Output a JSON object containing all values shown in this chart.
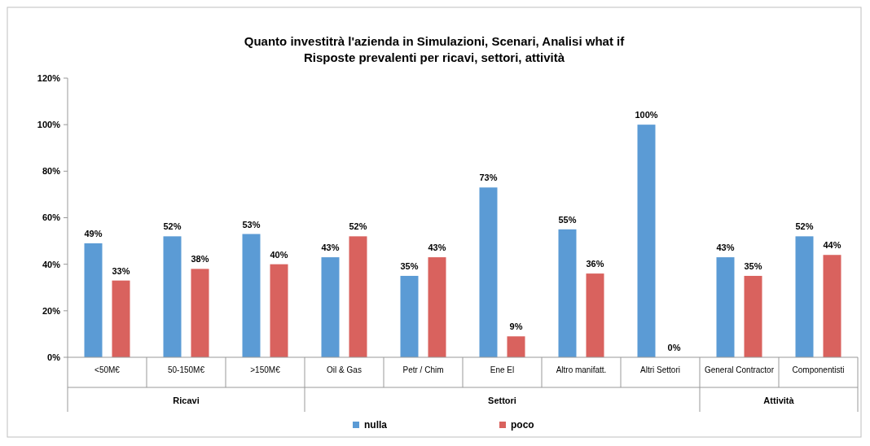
{
  "chart_data": {
    "type": "bar",
    "title": "Quanto investitrà l'azienda in  Simulazioni, Scenari, Analisi what if",
    "subtitle": "Risposte prevalenti per ricavi, settori, attività",
    "categories": [
      "<50M€",
      "50-150M€",
      ">150M€",
      "Oil & Gas",
      "Petr / Chim",
      "Ene El",
      "Altro manifatt.",
      "Altri Settori",
      "General Contractor",
      "Componentisti"
    ],
    "series": [
      {
        "name": "nulla",
        "color": "#5b9bd5",
        "values": [
          49,
          52,
          53,
          43,
          35,
          73,
          55,
          100,
          43,
          52
        ]
      },
      {
        "name": "poco",
        "color": "#d9625e",
        "values": [
          33,
          38,
          40,
          52,
          43,
          9,
          36,
          0,
          35,
          44
        ]
      }
    ],
    "ylim": [
      0,
      120
    ],
    "yticks": [
      {
        "value": 0,
        "label": "0%"
      },
      {
        "value": 20,
        "label": "20%"
      },
      {
        "value": 40,
        "label": "40%"
      },
      {
        "value": 60,
        "label": "60%"
      },
      {
        "value": 80,
        "label": "80%"
      },
      {
        "value": 100,
        "label": "100%"
      },
      {
        "value": 120,
        "label": "120%"
      }
    ],
    "value_labels": [
      [
        "49%",
        "52%",
        "53%",
        "43%",
        "35%",
        "73%",
        "55%",
        "100%",
        "43%",
        "52%"
      ],
      [
        "33%",
        "38%",
        "40%",
        "52%",
        "43%",
        "9%",
        "36%",
        "0%",
        "35%",
        "44%"
      ]
    ],
    "annotations": [
      "Ricavi",
      "Settori",
      "Attività"
    ],
    "grid": false,
    "legend": "bottom"
  }
}
